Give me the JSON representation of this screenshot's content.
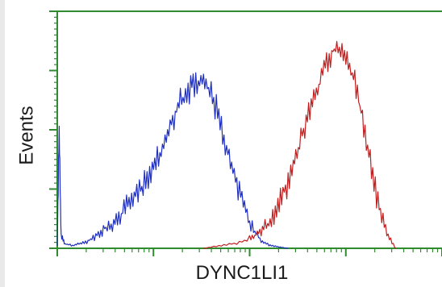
{
  "chart_data": {
    "type": "line",
    "title": "",
    "xlabel": "DYNC1LI1",
    "ylabel": "Events",
    "x_scale": "log",
    "xlim": [
      0,
      1
    ],
    "ylim": [
      0,
      1
    ],
    "grid": false,
    "legend": "none",
    "colors": {
      "frame": "#2e8b2e",
      "axis": "#2e8b2e"
    },
    "series": [
      {
        "color": "#1f2fbf",
        "x": [
          0.0,
          0.005,
          0.01,
          0.02,
          0.04,
          0.06,
          0.08,
          0.1,
          0.12,
          0.14,
          0.16,
          0.18,
          0.2,
          0.22,
          0.24,
          0.26,
          0.28,
          0.3,
          0.32,
          0.34,
          0.36,
          0.38,
          0.4,
          0.42,
          0.44,
          0.46,
          0.48,
          0.5,
          0.52,
          0.54,
          0.56,
          0.58,
          0.6
        ],
        "y": [
          0.01,
          0.5,
          0.05,
          0.02,
          0.01,
          0.02,
          0.03,
          0.05,
          0.08,
          0.1,
          0.13,
          0.17,
          0.21,
          0.26,
          0.3,
          0.38,
          0.44,
          0.54,
          0.62,
          0.66,
          0.7,
          0.72,
          0.65,
          0.56,
          0.43,
          0.3,
          0.2,
          0.11,
          0.05,
          0.02,
          0.01,
          0.005,
          0.0
        ]
      },
      {
        "color": "#c01f1f",
        "x": [
          0.38,
          0.42,
          0.46,
          0.5,
          0.52,
          0.54,
          0.56,
          0.58,
          0.6,
          0.62,
          0.64,
          0.66,
          0.68,
          0.7,
          0.72,
          0.74,
          0.76,
          0.78,
          0.8,
          0.82,
          0.84,
          0.86,
          0.88
        ],
        "y": [
          0.0,
          0.01,
          0.02,
          0.04,
          0.06,
          0.09,
          0.13,
          0.2,
          0.28,
          0.38,
          0.5,
          0.6,
          0.68,
          0.79,
          0.84,
          0.85,
          0.78,
          0.65,
          0.5,
          0.3,
          0.15,
          0.05,
          0.0
        ]
      }
    ]
  }
}
